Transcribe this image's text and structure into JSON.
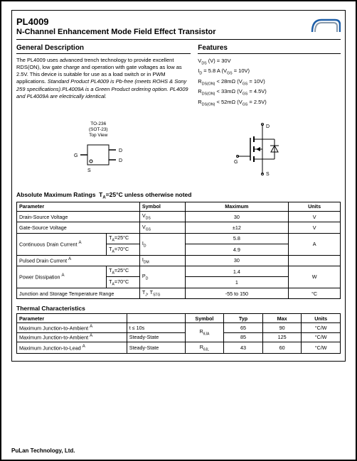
{
  "header": {
    "part_number": "PL4009",
    "title": "N-Channel Enhancement Mode Field Effect Transistor"
  },
  "general_description": {
    "heading": "General Description",
    "body_plain": "The PL4009 uses advanced trench technology to provide excellent RDS(ON), low gate charge and operation with gate voltages as low as 2.5V. This device is suitable for use as a load switch or in PWM applications.",
    "body_italic": " Standard Product PL4009 is Pb-free (meets ROHS & Sony 259 specifications).PL4009A is a Green Product ordering option. PL4009 and PL4009A are electrically identical."
  },
  "features": {
    "heading": "Features",
    "items": [
      "V<sub>DS</sub> (V) = 30V",
      "I<sub>D</sub> = 5.8 A (V<sub>GS</sub> = 10V)",
      "R<sub>DS(ON)</sub> < 28mΩ (V<sub>GS</sub> = 10V)",
      "R<sub>DS(ON)</sub> < 33mΩ (V<sub>GS</sub> = 4.5V)",
      "R<sub>DS(ON)</sub> < 52mΩ (V<sub>GS</sub> = 2.5V)"
    ]
  },
  "package": {
    "line1": "TO-236",
    "line2": "(SOT-23)",
    "line3": "Top View",
    "pins": {
      "g": "G",
      "s": "S",
      "d": "D"
    }
  },
  "abs_max": {
    "title": "Absolute Maximum Ratings  T_A=25°C unless otherwise noted",
    "headers": [
      "Parameter",
      "Symbol",
      "Maximum",
      "Units"
    ],
    "rows": [
      {
        "param": "Drain-Source Voltage",
        "sub": null,
        "symbol": "V<sub>DS</sub>",
        "max": "30",
        "units": "V"
      },
      {
        "param": "Gate-Source Voltage",
        "sub": null,
        "symbol": "V<sub>GS</sub>",
        "max": "±12",
        "units": "V"
      },
      {
        "param": "Continuous Drain Current <sup>A</sup>",
        "sub": [
          "T<sub>A</sub>=25°C",
          "T<sub>A</sub>=70°C"
        ],
        "symbol": "I<sub>D</sub>",
        "max": [
          "5.8",
          "4.9"
        ],
        "units": "A"
      },
      {
        "param": "Pulsed Drain Current <sup>A</sup>",
        "sub": null,
        "symbol": "I<sub>DM</sub>",
        "max": "30",
        "units": ""
      },
      {
        "param": "Power Dissipation <sup>A</sup>",
        "sub": [
          "T<sub>A</sub>=25°C",
          "T<sub>A</sub>=70°C"
        ],
        "symbol": "P<sub>D</sub>",
        "max": [
          "1.4",
          "1"
        ],
        "units": "W"
      },
      {
        "param": "Junction and Storage Temperature Range",
        "sub": null,
        "symbol": "T<sub>J</sub>, T<sub>STG</sub>",
        "max": "-55 to 150",
        "units": "°C"
      }
    ]
  },
  "thermal": {
    "title": "Thermal Characteristics",
    "headers": [
      "Parameter",
      "",
      "Symbol",
      "Typ",
      "Max",
      "Units"
    ],
    "rows": [
      {
        "param": "Maximum Junction-to-Ambient <sup>A</sup>",
        "cond": "t ≤ 10s",
        "symbol": "R<sub>θJA</sub>",
        "typ": "65",
        "max": "90",
        "units": "°C/W"
      },
      {
        "param": "Maximum Junction-to-Ambient <sup>A</sup>",
        "cond": "Steady-State",
        "symbol": "",
        "typ": "85",
        "max": "125",
        "units": "°C/W"
      },
      {
        "param": "Maximum Junction-to-Lead <sup>A</sup>",
        "cond": "Steady-State",
        "symbol": "R<sub>θJL</sub>",
        "typ": "43",
        "max": "60",
        "units": "°C/W"
      }
    ]
  },
  "footer": "PuLan Technology, Ltd.",
  "colors": {
    "logo_blue": "#1e5fa8",
    "logo_gray": "#8899aa",
    "border": "#000000"
  }
}
